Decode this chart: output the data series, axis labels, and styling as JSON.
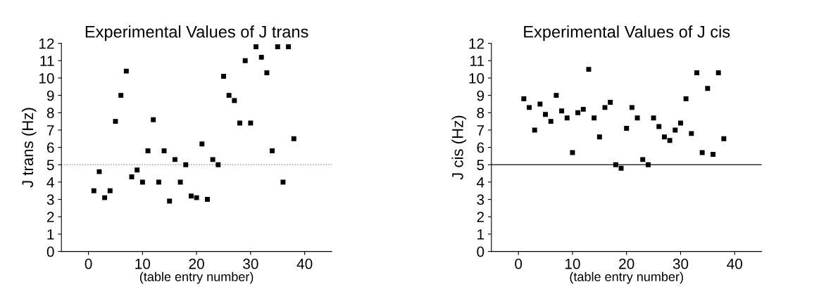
{
  "chart_data": [
    {
      "type": "scatter",
      "title": "Experimental Values of J trans",
      "xlabel": "(table entry number)",
      "ylabel": "J trans (Hz)",
      "marker": "square",
      "grid": false,
      "legend": false,
      "x": [
        1,
        2,
        3,
        4,
        5,
        6,
        7,
        8,
        9,
        10,
        11,
        12,
        13,
        14,
        15,
        16,
        17,
        18,
        19,
        20,
        21,
        22,
        23,
        24,
        25,
        26,
        27,
        28,
        29,
        30,
        31,
        32,
        33,
        34,
        35,
        36,
        37,
        38
      ],
      "series": [
        {
          "color": "#000000",
          "values": [
            3.5,
            4.6,
            3.1,
            3.5,
            7.5,
            9.0,
            10.4,
            4.3,
            4.7,
            4.0,
            5.8,
            7.6,
            4.0,
            5.8,
            2.9,
            5.3,
            4.0,
            5.0,
            3.2,
            3.1,
            6.2,
            3.0,
            5.3,
            5.0,
            10.1,
            9.0,
            8.7,
            7.4,
            11.0,
            7.4,
            11.8,
            11.2,
            10.3,
            5.8,
            11.8,
            4.0,
            11.8,
            6.5
          ]
        }
      ],
      "xlim": [
        -5,
        45
      ],
      "xticks": [
        0,
        10,
        20,
        30,
        40
      ],
      "ylim": [
        0,
        12
      ],
      "yticks": [
        0,
        1,
        2,
        3,
        4,
        5,
        6,
        7,
        8,
        9,
        10,
        11,
        12
      ],
      "ref_lines": [
        {
          "axis": "y",
          "value": 5,
          "color": "#999999",
          "line_style": "dotted"
        }
      ]
    },
    {
      "type": "scatter",
      "title": "Experimental Values of J cis",
      "xlabel": "(table entry number)",
      "ylabel": "J cis (Hz)",
      "marker": "square",
      "grid": false,
      "legend": false,
      "x": [
        1,
        2,
        3,
        4,
        5,
        6,
        7,
        8,
        9,
        10,
        11,
        12,
        13,
        14,
        15,
        16,
        17,
        18,
        19,
        20,
        21,
        22,
        23,
        24,
        25,
        26,
        27,
        28,
        29,
        30,
        31,
        32,
        33,
        34,
        35,
        36,
        37,
        38
      ],
      "series": [
        {
          "color": "#000000",
          "values": [
            8.8,
            8.3,
            7.0,
            8.5,
            7.9,
            7.5,
            9.0,
            8.1,
            7.7,
            5.7,
            8.0,
            8.2,
            10.5,
            7.7,
            6.6,
            8.3,
            8.6,
            5.0,
            4.8,
            7.1,
            8.3,
            7.7,
            5.3,
            5.0,
            7.7,
            7.2,
            6.6,
            6.4,
            7.0,
            7.4,
            8.8,
            6.8,
            10.3,
            5.7,
            9.4,
            5.6,
            10.3,
            6.5
          ]
        }
      ],
      "xlim": [
        -5,
        45
      ],
      "xticks": [
        0,
        10,
        20,
        30,
        40
      ],
      "ylim": [
        0,
        12
      ],
      "yticks": [
        0,
        1,
        2,
        3,
        4,
        5,
        6,
        7,
        8,
        9,
        10,
        11,
        12
      ],
      "ref_lines": [
        {
          "axis": "y",
          "value": 5,
          "color": "#333333",
          "line_style": "solid"
        }
      ]
    }
  ]
}
